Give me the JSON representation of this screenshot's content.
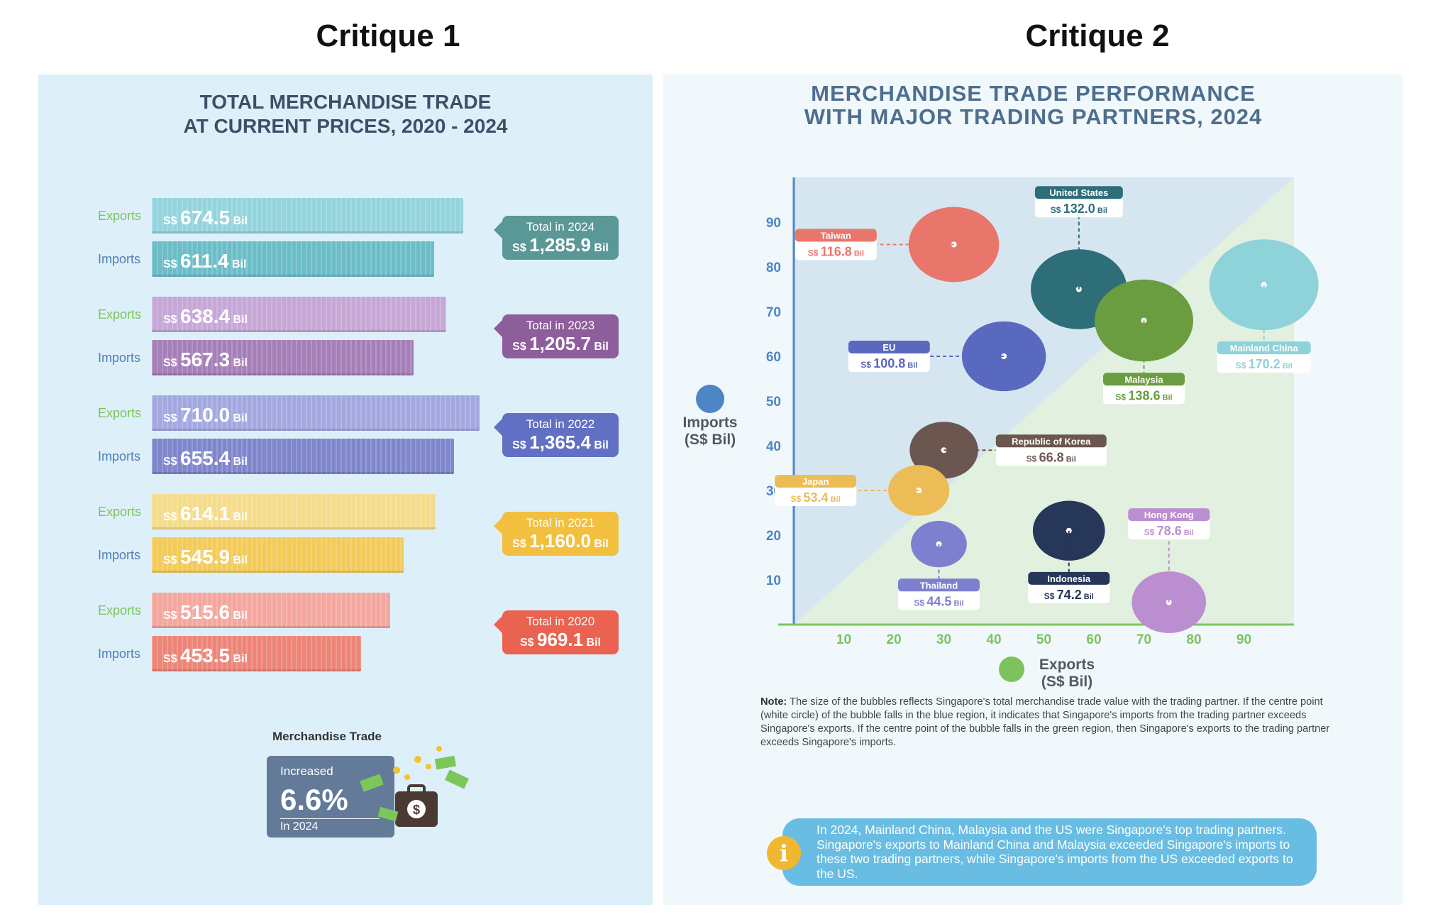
{
  "headers": {
    "left": "Critique 1",
    "right": "Critique 2"
  },
  "panel1": {
    "title_line1": "TOTAL MERCHANDISE TRADE",
    "title_line2": "AT CURRENT PRICES, 2020 - 2024",
    "currency": "S$",
    "unit": "Bil",
    "export_label": "Exports",
    "import_label": "Imports",
    "years": [
      {
        "exports": "674.5",
        "imports": "611.4",
        "total_label": "Total in 2024",
        "total": "1,285.9",
        "color": "#94d4dc",
        "color2": "#6cbdc7",
        "total_color": "#5a9898"
      },
      {
        "exports": "638.4",
        "imports": "567.3",
        "total_label": "Total in 2023",
        "total": "1,205.7",
        "color": "#c6a7d6",
        "color2": "#a57fb8",
        "total_color": "#8e5e9c"
      },
      {
        "exports": "710.0",
        "imports": "655.4",
        "total_label": "Total in 2022",
        "total": "1,365.4",
        "color": "#a3a8e0",
        "color2": "#7f86cb",
        "total_color": "#6270c4"
      },
      {
        "exports": "614.1",
        "imports": "545.9",
        "total_label": "Total in 2021",
        "total": "1,160.0",
        "color": "#f5dc8c",
        "color2": "#f3cb5a",
        "total_color": "#f2bf3f"
      },
      {
        "exports": "515.6",
        "imports": "453.5",
        "total_label": "Total in 2020",
        "total": "969.1",
        "color": "#f4a79e",
        "color2": "#ec8578",
        "total_color": "#ea6350"
      }
    ],
    "summary": {
      "label": "Merchandise Trade",
      "line1": "Increased",
      "value": "6.6%",
      "line3": "In 2024"
    }
  },
  "panel2": {
    "title_line1": "MERCHANDISE TRADE PERFORMANCE",
    "title_line2": "WITH MAJOR TRADING PARTNERS, 2024",
    "ylabel_line1": "Imports",
    "ylabel_line2": "(S$ Bil)",
    "xlabel_line1": "Exports",
    "xlabel_line2": "(S$ Bil)",
    "note_label": "Note:",
    "note_text": "The size of the bubbles reflects Singapore's total merchandise trade value with the trading partner. If the centre point (white circle) of the bubble falls in the blue region, it indicates that Singapore's imports from the trading partner exceeds Singapore's exports. If the centre point of the bubble falls in the green region, then Singapore's exports to the trading partner exceeds Singapore's imports.",
    "info_text": "In 2024, Mainland China, Malaysia and the US were Singapore's top trading partners. Singapore's exports to Mainland China and Malaysia exceeded Singapore's imports to these two trading partners, while Singapore's imports from the US exceeded exports to the US."
  },
  "chart_data": [
    {
      "type": "bar",
      "title": "TOTAL MERCHANDISE TRADE AT CURRENT PRICES, 2020 - 2024",
      "categories": [
        "2024",
        "2023",
        "2022",
        "2021",
        "2020"
      ],
      "series": [
        {
          "name": "Exports",
          "values": [
            674.5,
            638.4,
            710.0,
            614.1,
            515.6
          ]
        },
        {
          "name": "Imports",
          "values": [
            611.4,
            567.3,
            655.4,
            545.9,
            453.5
          ]
        }
      ],
      "totals": [
        1285.9,
        1205.7,
        1365.4,
        1160.0,
        969.1
      ],
      "unit": "S$ Bil",
      "orientation": "horizontal"
    },
    {
      "type": "scatter",
      "title": "MERCHANDISE TRADE PERFORMANCE WITH MAJOR TRADING PARTNERS, 2024",
      "xlabel": "Exports (S$ Bil)",
      "ylabel": "Imports (S$ Bil)",
      "xlim": [
        0,
        100
      ],
      "ylim": [
        0,
        100
      ],
      "xticks": [
        10,
        20,
        30,
        40,
        50,
        60,
        70,
        80,
        90
      ],
      "yticks": [
        10,
        20,
        30,
        40,
        50,
        60,
        70,
        80,
        90
      ],
      "points": [
        {
          "name": "Taiwan",
          "x": 32,
          "y": 85,
          "total": "116.8",
          "color": "#e8766a",
          "label_side": "left"
        },
        {
          "name": "United States",
          "x": 57,
          "y": 75,
          "total": "132.0",
          "color": "#2d6e78",
          "label_side": "top"
        },
        {
          "name": "Malaysia",
          "x": 70,
          "y": 68,
          "total": "138.6",
          "color": "#6a9c40",
          "label_side": "bottom"
        },
        {
          "name": "Mainland China",
          "x": 94,
          "y": 76,
          "total": "170.2",
          "color": "#8ed3da",
          "label_side": "bottom"
        },
        {
          "name": "EU",
          "x": 42,
          "y": 60,
          "total": "100.8",
          "color": "#5a69c0",
          "label_side": "left"
        },
        {
          "name": "Republic of Korea",
          "x": 30,
          "y": 39,
          "total": "66.8",
          "color": "#6b5750",
          "label_side": "right"
        },
        {
          "name": "Japan",
          "x": 25,
          "y": 30,
          "total": "53.4",
          "color": "#ecbd56",
          "label_side": "left"
        },
        {
          "name": "Thailand",
          "x": 29,
          "y": 18,
          "total": "44.5",
          "color": "#7d80cf",
          "label_side": "bottom"
        },
        {
          "name": "Indonesia",
          "x": 55,
          "y": 21,
          "total": "74.2",
          "color": "#27375a",
          "label_side": "bottom"
        },
        {
          "name": "Hong Kong",
          "x": 75,
          "y": 5,
          "total": "78.6",
          "color": "#bb8ed0",
          "label_side": "top"
        }
      ],
      "unit": "S$ Bil",
      "regions": [
        "blue: imports exceed exports",
        "green: exports exceed imports"
      ]
    }
  ]
}
